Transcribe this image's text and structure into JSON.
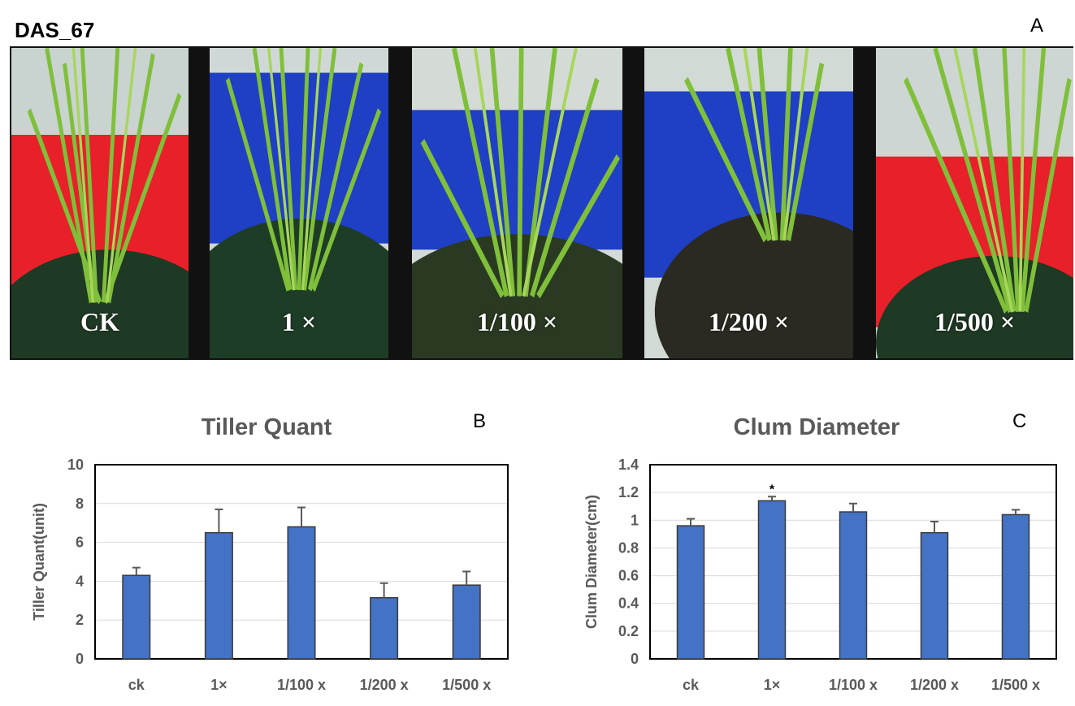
{
  "figure": {
    "title": "DAS_67",
    "panel_letters": {
      "a": "A",
      "b": "B",
      "c": "C"
    }
  },
  "photos": [
    {
      "label": "CK",
      "pot_color": "#e8202a"
    },
    {
      "label": "1 ×",
      "pot_color": "#1f3fc4"
    },
    {
      "label": "1/100 ×",
      "pot_color": "#1f3fc4"
    },
    {
      "label": "1/200 ×",
      "pot_color": "#1f3fc4"
    },
    {
      "label": "1/500 ×",
      "pot_color": "#e8202a"
    }
  ],
  "chart_data": [
    {
      "type": "bar",
      "title": "Tiller Quant",
      "ylabel": "Tiller Quant(unit)",
      "xlabel": "",
      "categories": [
        "ck",
        "1×",
        "1/100 x",
        "1/200 x",
        "1/500 x"
      ],
      "values": [
        4.3,
        6.5,
        6.8,
        3.15,
        3.8
      ],
      "errors": [
        0.4,
        1.2,
        1.0,
        0.75,
        0.7
      ],
      "annotations": [
        "",
        "",
        "",
        "",
        ""
      ],
      "ylim": [
        0,
        10
      ],
      "yticks": [
        "0",
        "2",
        "4",
        "6",
        "8",
        "10"
      ],
      "grid": true,
      "bar_color": "#4472c4"
    },
    {
      "type": "bar",
      "title": "Clum Diameter",
      "ylabel": "Clum Diameter(cm)",
      "xlabel": "",
      "categories": [
        "ck",
        "1×",
        "1/100 x",
        "1/200 x",
        "1/500 x"
      ],
      "values": [
        0.96,
        1.14,
        1.06,
        0.91,
        1.04
      ],
      "errors": [
        0.05,
        0.03,
        0.06,
        0.08,
        0.035
      ],
      "annotations": [
        "",
        "*",
        "",
        "",
        ""
      ],
      "ylim": [
        0,
        1.4
      ],
      "yticks": [
        "0",
        "0.2",
        "0.4",
        "0.6",
        "0.8",
        "1",
        "1.2",
        "1.4"
      ],
      "grid": true,
      "bar_color": "#4472c4"
    }
  ]
}
